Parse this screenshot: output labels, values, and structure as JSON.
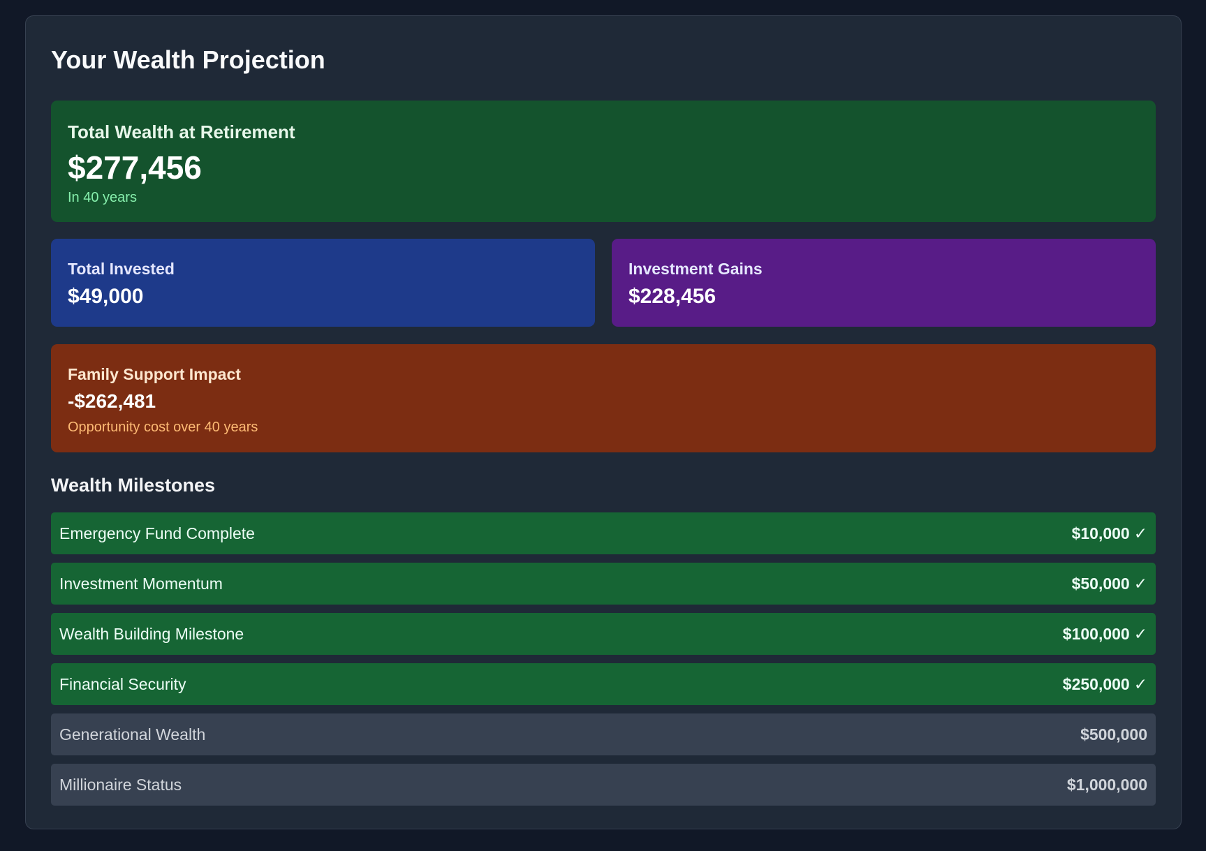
{
  "page": {
    "title": "Your Wealth Projection"
  },
  "total": {
    "label": "Total Wealth at Retirement",
    "value": "$277,456",
    "sub": "In 40 years"
  },
  "invested": {
    "label": "Total Invested",
    "value": "$49,000"
  },
  "gains": {
    "label": "Investment Gains",
    "value": "$228,456"
  },
  "family": {
    "label": "Family Support Impact",
    "value": "-$262,481",
    "sub": "Opportunity cost over 40 years"
  },
  "milestones": {
    "title": "Wealth Milestones",
    "check_icon": "checkmark-icon",
    "check_glyph": "✓",
    "items": [
      {
        "label": "Emergency Fund Complete",
        "amount": "$10,000",
        "achieved": true
      },
      {
        "label": "Investment Momentum",
        "amount": "$50,000",
        "achieved": true
      },
      {
        "label": "Wealth Building Milestone",
        "amount": "$100,000",
        "achieved": true
      },
      {
        "label": "Financial Security",
        "amount": "$250,000",
        "achieved": true
      },
      {
        "label": "Generational Wealth",
        "amount": "$500,000",
        "achieved": false
      },
      {
        "label": "Millionaire Status",
        "amount": "$1,000,000",
        "achieved": false
      }
    ]
  },
  "colors": {
    "page_bg": "#111827",
    "panel_bg": "#1f2937",
    "total_card": "#14532d",
    "invested_card": "#1e3a8a",
    "gains_card": "#581c87",
    "family_card": "#7c2d12",
    "milestone_achieved": "#166534",
    "milestone_pending": "#374151"
  }
}
